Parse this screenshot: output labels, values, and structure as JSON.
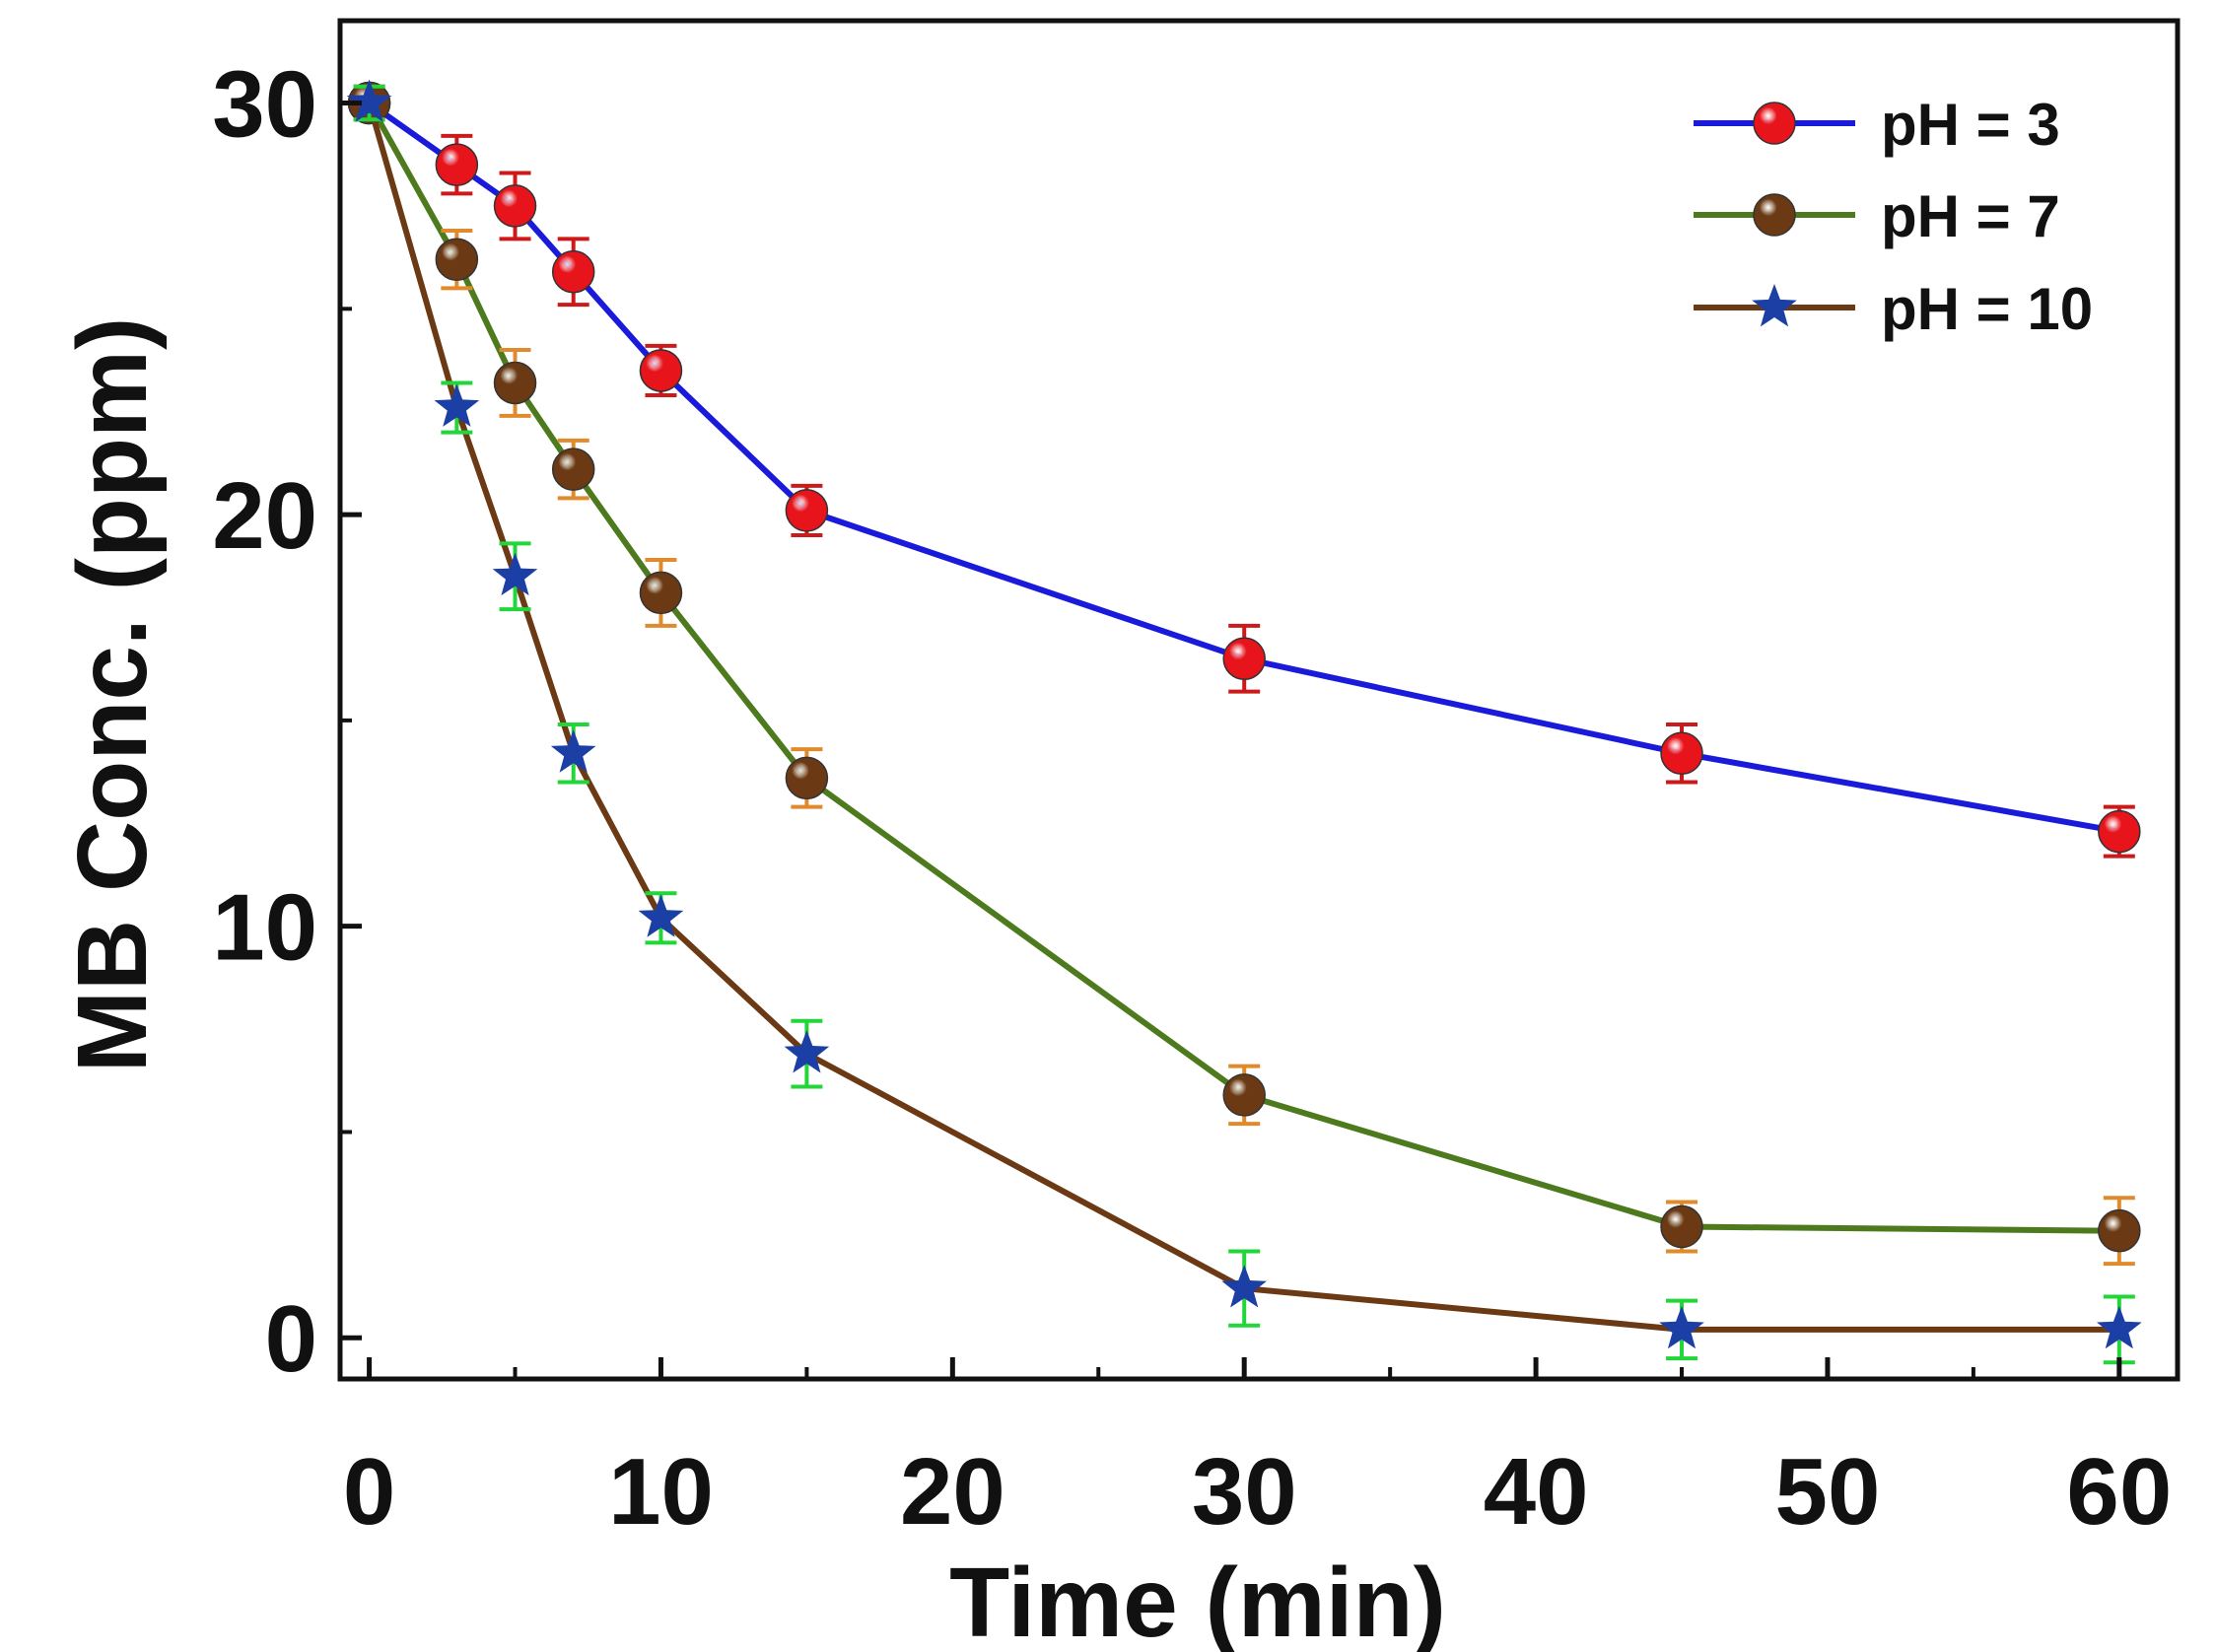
{
  "chart_data": {
    "type": "line",
    "title": "",
    "xlabel": "Time (min)",
    "ylabel": "MB Conc. (ppm)",
    "xlim": [
      -1,
      62
    ],
    "ylim": [
      -1,
      32
    ],
    "xticks": [
      0,
      10,
      20,
      30,
      40,
      50,
      60
    ],
    "yticks": [
      0,
      10,
      20,
      30
    ],
    "x_tick_labels": [
      "0",
      "10",
      "20",
      "30",
      "40",
      "50",
      "60"
    ],
    "y_tick_labels": [
      "0",
      "10",
      "20",
      "30"
    ],
    "x_minor_step": 5,
    "y_minor_step": 5,
    "grid": false,
    "legend_position": "top-right",
    "x": [
      0,
      3,
      5,
      7,
      10,
      15,
      30,
      45,
      60
    ],
    "series": [
      {
        "name": "pH = 3",
        "marker": "circle",
        "line_color": "#1a1adb",
        "marker_color": "#e8141c",
        "errorbar_color": "#cc1a1a",
        "values": [
          30,
          28.5,
          27.5,
          25.9,
          23.5,
          20.1,
          16.5,
          14.2,
          12.3
        ],
        "errors": [
          0.4,
          0.7,
          0.8,
          0.8,
          0.6,
          0.6,
          0.8,
          0.7,
          0.6
        ]
      },
      {
        "name": "pH = 7",
        "marker": "circle",
        "line_color": "#4e7a1e",
        "marker_color": "#6b3a14",
        "errorbar_color": "#e08a2e",
        "values": [
          30,
          26.2,
          23.2,
          21.1,
          18.1,
          13.6,
          5.9,
          2.7,
          2.6
        ],
        "errors": [
          0.4,
          0.7,
          0.8,
          0.7,
          0.8,
          0.7,
          0.7,
          0.6,
          0.8
        ]
      },
      {
        "name": "pH = 10",
        "marker": "star",
        "line_color": "#6b3a14",
        "marker_color": "#1c3fa6",
        "errorbar_color": "#22d63a",
        "values": [
          30,
          22.6,
          18.5,
          14.2,
          10.2,
          6.9,
          1.2,
          0.2,
          0.2
        ],
        "errors": [
          0.4,
          0.6,
          0.8,
          0.7,
          0.6,
          0.8,
          0.9,
          0.7,
          0.8
        ]
      }
    ]
  }
}
